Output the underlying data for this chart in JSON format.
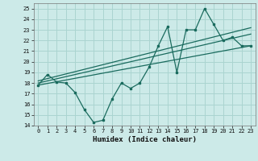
{
  "xlabel": "Humidex (Indice chaleur)",
  "background_color": "#cceae8",
  "grid_color": "#aad4d0",
  "line_color": "#1a6b5e",
  "xlim": [
    -0.5,
    23.5
  ],
  "ylim": [
    14,
    25.5
  ],
  "yticks": [
    14,
    15,
    16,
    17,
    18,
    19,
    20,
    21,
    22,
    23,
    24,
    25
  ],
  "xticks": [
    0,
    1,
    2,
    3,
    4,
    5,
    6,
    7,
    8,
    9,
    10,
    11,
    12,
    13,
    14,
    15,
    16,
    17,
    18,
    19,
    20,
    21,
    22,
    23
  ],
  "main_series_x": [
    0,
    1,
    2,
    3,
    4,
    5,
    6,
    7,
    8,
    9,
    10,
    11,
    12,
    13,
    14,
    15,
    16,
    17,
    18,
    19,
    20,
    21,
    22,
    23
  ],
  "main_series_y": [
    17.8,
    18.8,
    18.1,
    18.0,
    17.1,
    15.5,
    14.3,
    14.5,
    16.5,
    18.0,
    17.5,
    18.0,
    19.5,
    21.5,
    23.3,
    19.0,
    23.0,
    23.0,
    25.0,
    23.5,
    22.0,
    22.3,
    21.5,
    21.5
  ],
  "line1_x": [
    0,
    23
  ],
  "line1_y": [
    18.0,
    22.6
  ],
  "line2_x": [
    0,
    23
  ],
  "line2_y": [
    18.2,
    23.2
  ],
  "line3_x": [
    0,
    23
  ],
  "line3_y": [
    17.8,
    21.5
  ]
}
